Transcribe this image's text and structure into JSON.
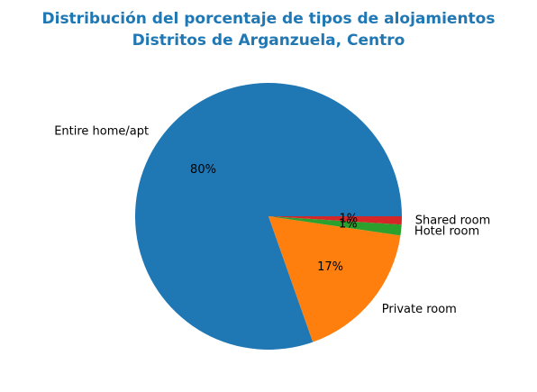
{
  "chart_data": {
    "type": "pie",
    "title_lines": [
      "Distribución del porcentaje de tipos de alojamientos",
      "Distritos de Arganzuela, Centro"
    ],
    "title_color": "#1f77b4",
    "start_angle_deg": 0,
    "direction": "counterclockwise",
    "slices": [
      {
        "label": "Entire home/apt",
        "value": 80.4,
        "percent_label": "80%",
        "color": "#1f77b4"
      },
      {
        "label": "Private room",
        "value": 17.3,
        "percent_label": "17%",
        "color": "#ff7f0e"
      },
      {
        "label": "Hotel room",
        "value": 1.3,
        "percent_label": "1%",
        "color": "#2ca02c"
      },
      {
        "label": "Shared room",
        "value": 1.0,
        "percent_label": "1%",
        "color": "#d62728"
      }
    ]
  }
}
